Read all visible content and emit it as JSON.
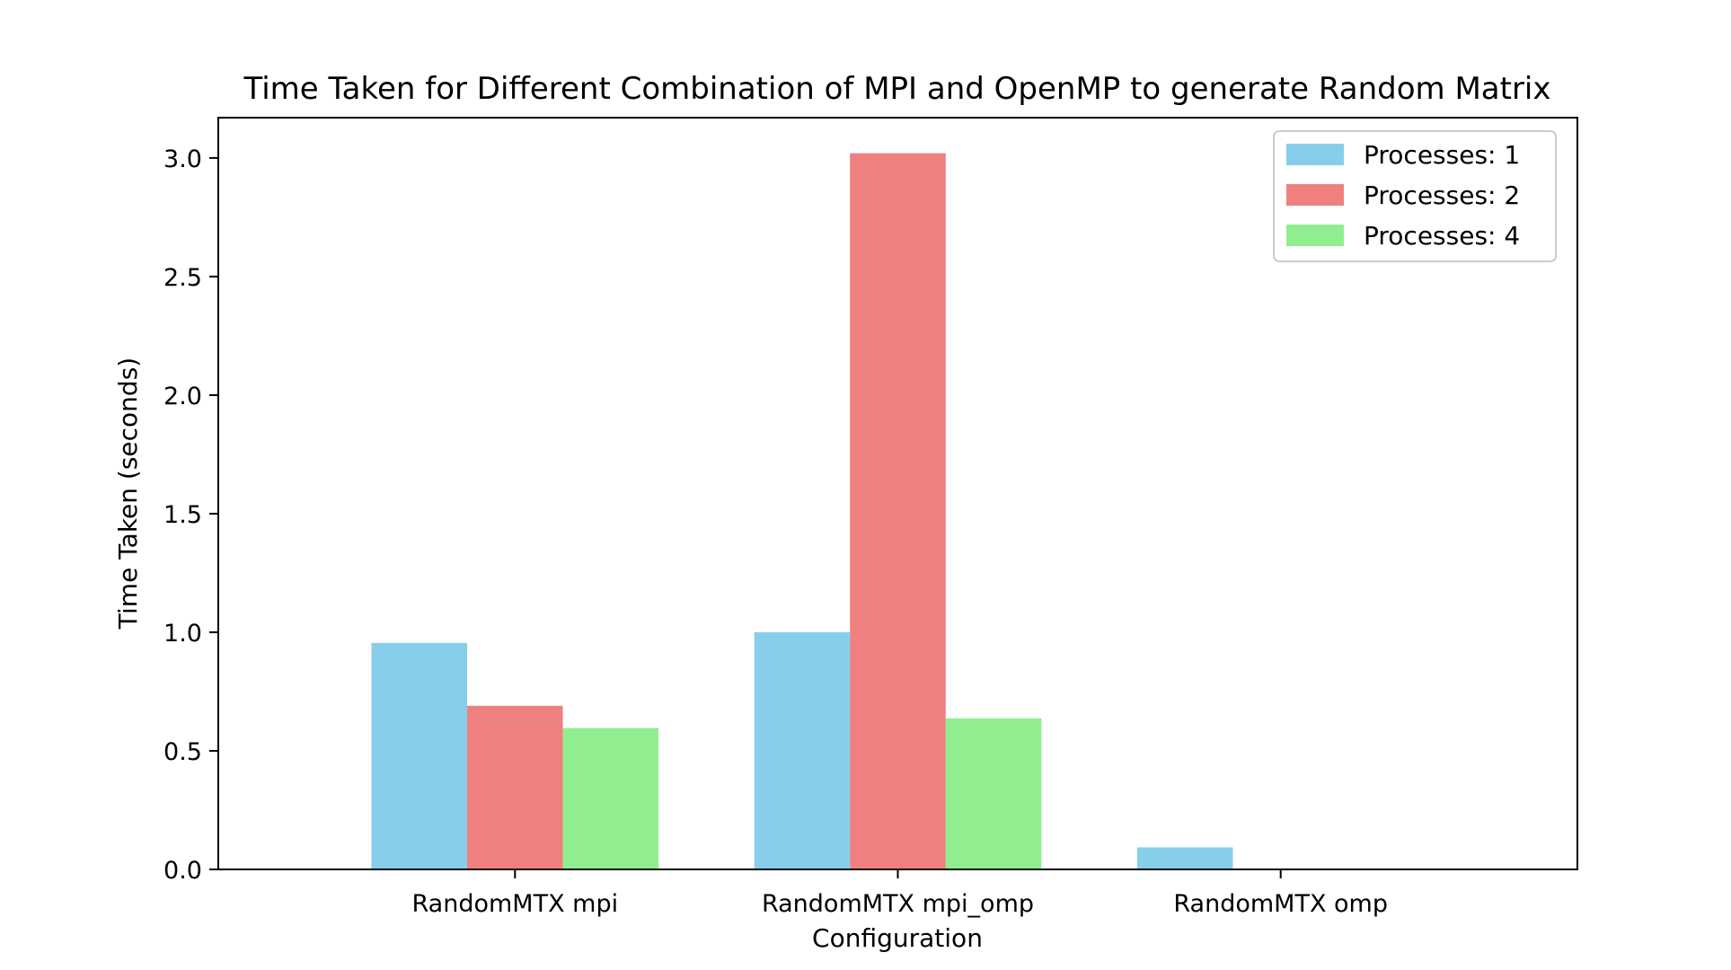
{
  "chart_data": {
    "type": "bar",
    "title": "Time Taken for Different Combination of MPI and OpenMP to generate Random Matrix",
    "xlabel": "Configuration",
    "ylabel": "Time Taken (seconds)",
    "categories": [
      "RandomMTX mpi",
      "RandomMTX mpi_omp",
      "RandomMTX omp"
    ],
    "series": [
      {
        "name": "Processes: 1",
        "color": "#87ceeb",
        "values": [
          0.955,
          1.0,
          0.093
        ]
      },
      {
        "name": "Processes: 2",
        "color": "#f08080",
        "values": [
          0.69,
          3.02,
          null
        ]
      },
      {
        "name": "Processes: 4",
        "color": "#90ee90",
        "values": [
          0.596,
          0.637,
          null
        ]
      }
    ],
    "ylim": [
      0,
      3.17
    ],
    "yticks": [
      0.0,
      0.5,
      1.0,
      1.5,
      2.0,
      2.5,
      3.0
    ],
    "grid": false,
    "legend_position": "top-right"
  }
}
